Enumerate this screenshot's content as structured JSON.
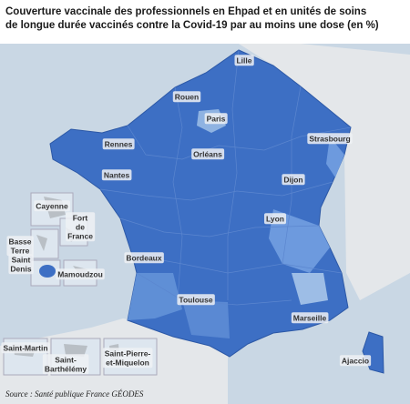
{
  "header": {
    "title": [
      "Couverture vaccinale des professionnels en Ehpad et en unités de soins",
      "de longue durée vaccinés contre la Covid-19 par au moins une dose (en %)"
    ]
  },
  "labels": [
    {
      "lines": [
        "Lille"
      ]
    },
    {
      "lines": [
        "Rouen"
      ]
    },
    {
      "lines": [
        "Paris"
      ]
    },
    {
      "lines": [
        "Strasbourg"
      ]
    },
    {
      "lines": [
        "Rennes"
      ]
    },
    {
      "lines": [
        "Orléans"
      ]
    },
    {
      "lines": [
        "Nantes"
      ]
    },
    {
      "lines": [
        "Dijon"
      ]
    },
    {
      "lines": [
        "Lyon"
      ]
    },
    {
      "lines": [
        "Bordeaux"
      ]
    },
    {
      "lines": [
        "Toulouse"
      ]
    },
    {
      "lines": [
        "Marseille"
      ]
    },
    {
      "lines": [
        "Ajaccio"
      ]
    },
    {
      "lines": [
        "Cayenne"
      ]
    },
    {
      "lines": [
        "Fort",
        "de",
        "France"
      ]
    },
    {
      "lines": [
        "Basse",
        "Terre"
      ]
    },
    {
      "lines": [
        "Saint",
        "Denis"
      ]
    },
    {
      "lines": [
        "Mamoudzou"
      ]
    },
    {
      "lines": [
        "Saint-Martin"
      ]
    },
    {
      "lines": [
        "Saint-",
        "Barthélémy"
      ]
    },
    {
      "lines": [
        "Saint-Pierre-",
        "et-Miquelon"
      ]
    }
  ],
  "source": "Source : Santé publique France GÉODES"
}
